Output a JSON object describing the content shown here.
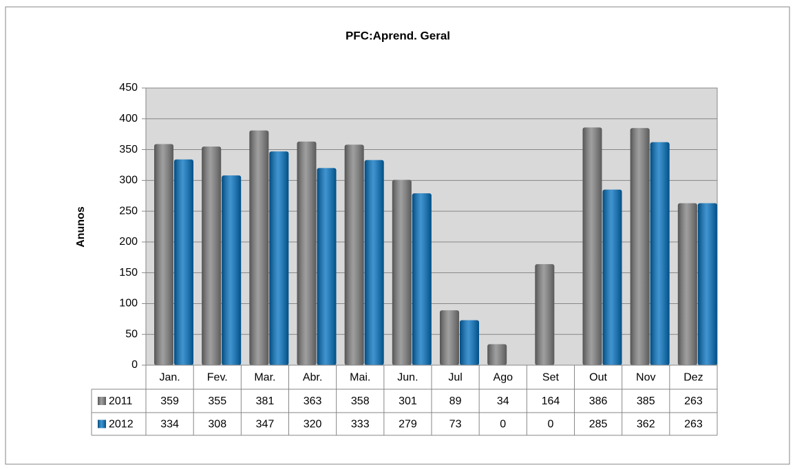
{
  "chart_data": {
    "type": "bar",
    "title": "PFC:Aprend. Geral",
    "y_label": "Anunos",
    "categories": [
      "Jan.",
      "Fev.",
      "Mar.",
      "Abr.",
      "Mai.",
      "Jun.",
      "Jul",
      "Ago",
      "Set",
      "Out",
      "Nov",
      "Dez"
    ],
    "series": [
      {
        "name": "2011",
        "color": "#7f7f7f",
        "values": [
          359,
          355,
          381,
          363,
          358,
          301,
          89,
          34,
          164,
          386,
          385,
          263
        ]
      },
      {
        "name": "2012",
        "color": "#0070c0",
        "values": [
          334,
          308,
          347,
          320,
          333,
          279,
          73,
          0,
          0,
          285,
          362,
          263
        ]
      }
    ],
    "ylim": [
      0,
      450
    ],
    "yticks": [
      0,
      50,
      100,
      150,
      200,
      250,
      300,
      350,
      400,
      450
    ],
    "grid": true,
    "data_table": true
  }
}
